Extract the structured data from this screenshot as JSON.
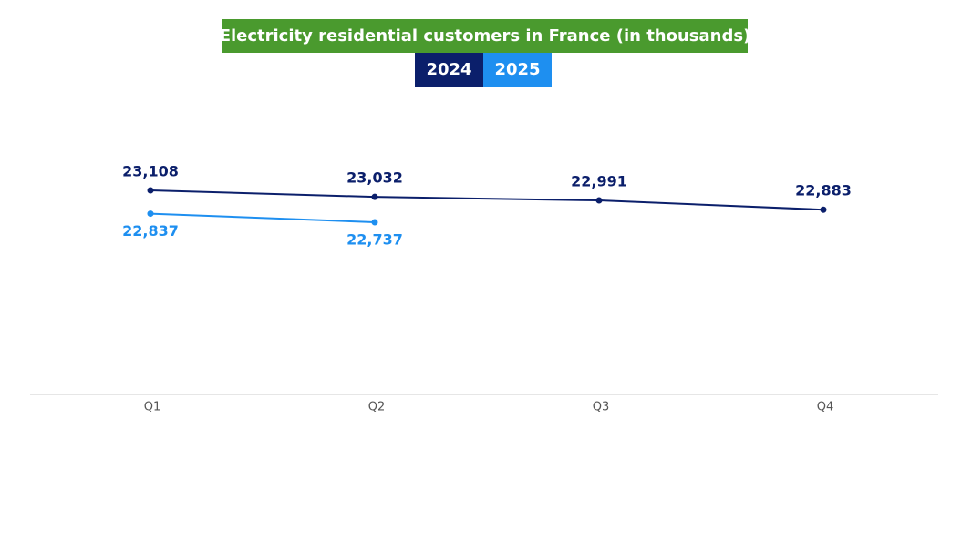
{
  "chart_data": {
    "type": "line",
    "title": "Electricity residential customers in France (in thousands)",
    "categories": [
      "Q1",
      "Q2",
      "Q3",
      "Q4"
    ],
    "series": [
      {
        "name": "2024",
        "color": "#0b1f6b",
        "values": [
          23108,
          23032,
          22991,
          22883
        ],
        "value_labels": [
          "23,108",
          "23,032",
          "22,991",
          "22,883"
        ]
      },
      {
        "name": "2025",
        "color": "#1e8ff0",
        "values": [
          22837,
          22737,
          null,
          null
        ],
        "value_labels": [
          "22,837",
          "22,737",
          null,
          null
        ]
      }
    ],
    "title_color": "#4a9a2e"
  }
}
